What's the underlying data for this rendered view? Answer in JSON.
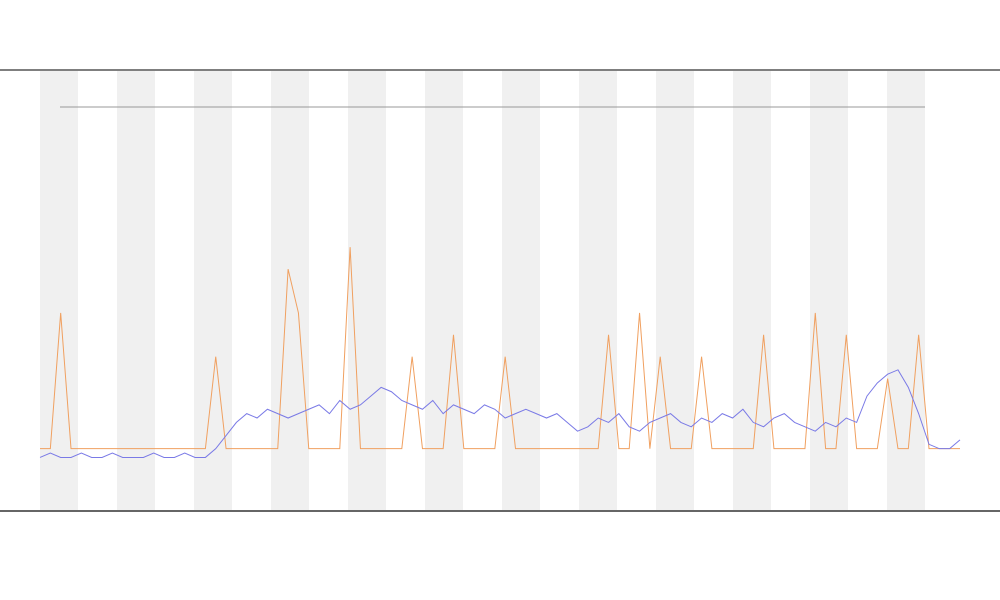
{
  "chart_data": {
    "type": "line",
    "x": [
      0,
      1,
      2,
      3,
      4,
      5,
      6,
      7,
      8,
      9,
      10,
      11,
      12,
      13,
      14,
      15,
      16,
      17,
      18,
      19,
      20,
      21,
      22,
      23,
      24,
      25,
      26,
      27,
      28,
      29,
      30,
      31,
      32,
      33,
      34,
      35,
      36,
      37,
      38,
      39,
      40,
      41,
      42,
      43,
      44,
      45,
      46,
      47,
      48,
      49,
      50,
      51,
      52,
      53,
      54,
      55,
      56,
      57,
      58,
      59,
      60,
      61,
      62,
      63,
      64,
      65,
      66,
      67,
      68,
      69,
      70,
      71,
      72,
      73,
      74,
      75,
      76,
      77,
      78,
      79,
      80,
      81,
      82,
      83,
      84,
      85,
      86,
      87,
      88,
      89
    ],
    "xlim": [
      0,
      89
    ],
    "ylim": [
      0,
      100
    ],
    "series": [
      {
        "color": "#f0a060",
        "values": [
          14,
          14,
          45,
          14,
          14,
          14,
          14,
          14,
          14,
          14,
          14,
          14,
          14,
          14,
          14,
          14,
          14,
          35,
          14,
          14,
          14,
          14,
          14,
          14,
          55,
          45,
          14,
          14,
          14,
          14,
          60,
          14,
          14,
          14,
          14,
          14,
          35,
          14,
          14,
          14,
          40,
          14,
          14,
          14,
          14,
          35,
          14,
          14,
          14,
          14,
          14,
          14,
          14,
          14,
          14,
          40,
          14,
          14,
          45,
          14,
          35,
          14,
          14,
          14,
          35,
          14,
          14,
          14,
          14,
          14,
          40,
          14,
          14,
          14,
          14,
          45,
          14,
          14,
          40,
          14,
          14,
          14,
          30,
          14,
          14,
          40,
          14,
          14,
          14,
          14
        ]
      },
      {
        "color": "#7a7ae6",
        "values": [
          12,
          13,
          12,
          12,
          13,
          12,
          12,
          13,
          12,
          12,
          12,
          13,
          12,
          12,
          13,
          12,
          12,
          14,
          17,
          20,
          22,
          21,
          23,
          22,
          21,
          22,
          23,
          24,
          22,
          25,
          23,
          24,
          26,
          28,
          27,
          25,
          24,
          23,
          25,
          22,
          24,
          23,
          22,
          24,
          23,
          21,
          22,
          23,
          22,
          21,
          22,
          20,
          18,
          19,
          21,
          20,
          22,
          19,
          18,
          20,
          21,
          22,
          20,
          19,
          21,
          20,
          22,
          21,
          23,
          20,
          19,
          21,
          22,
          20,
          19,
          18,
          20,
          19,
          21,
          20,
          26,
          29,
          31,
          32,
          28,
          22,
          15,
          14,
          14,
          16
        ]
      }
    ]
  }
}
